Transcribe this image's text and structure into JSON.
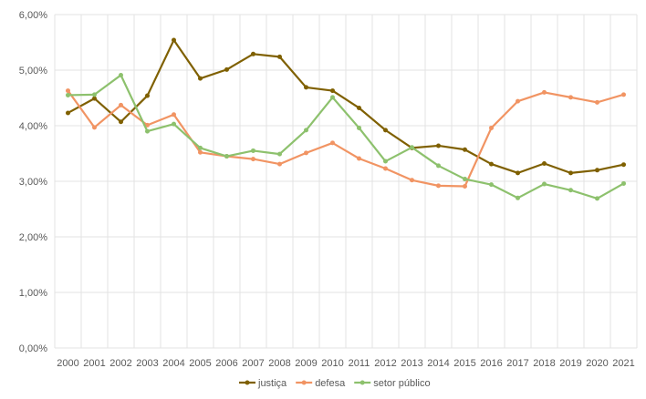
{
  "chart_data": {
    "type": "line",
    "title": "",
    "xlabel": "",
    "ylabel": "",
    "ylim": [
      0,
      6
    ],
    "yticks": [
      "0,00%",
      "1,00%",
      "2,00%",
      "3,00%",
      "4,00%",
      "5,00%",
      "6,00%"
    ],
    "grid": true,
    "legend_position": "bottom",
    "categories": [
      "2000",
      "2001",
      "2002",
      "2003",
      "2004",
      "2005",
      "2006",
      "2007",
      "2008",
      "2009",
      "2010",
      "2011",
      "2012",
      "2013",
      "2014",
      "2015",
      "2016",
      "2017",
      "2018",
      "2019",
      "2020",
      "2021"
    ],
    "series": [
      {
        "name": "justiça",
        "color": "#7f6000",
        "values": [
          4.23,
          4.49,
          4.07,
          4.54,
          5.54,
          4.85,
          5.01,
          5.29,
          5.24,
          4.69,
          4.63,
          4.32,
          3.92,
          3.6,
          3.64,
          3.57,
          3.31,
          3.15,
          3.32,
          3.15,
          3.2,
          3.3
        ]
      },
      {
        "name": "defesa",
        "color": "#f19463",
        "values": [
          4.63,
          3.97,
          4.37,
          4.01,
          4.2,
          3.52,
          3.45,
          3.4,
          3.31,
          3.51,
          3.69,
          3.41,
          3.23,
          3.02,
          2.92,
          2.91,
          3.96,
          4.44,
          4.6,
          4.51,
          4.42,
          4.56
        ]
      },
      {
        "name": "setor público",
        "color": "#8dc16d",
        "values": [
          4.55,
          4.56,
          4.91,
          3.9,
          4.03,
          3.6,
          3.45,
          3.55,
          3.49,
          3.92,
          4.51,
          3.96,
          3.36,
          3.61,
          3.28,
          3.04,
          2.94,
          2.7,
          2.95,
          2.84,
          2.69,
          2.96
        ]
      }
    ]
  }
}
